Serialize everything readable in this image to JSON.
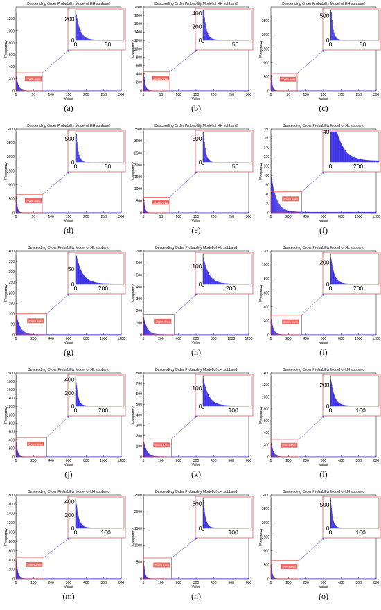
{
  "zoom_label": "Zoom Area",
  "axis_xlabel": "Value",
  "axis_ylabel": "Frequency",
  "colors": {
    "bars": "#3a2fe6",
    "zoom": "#e0403a",
    "zoom_fill": "#f06a64",
    "arrow": "#3030d0",
    "axis": "#000000"
  },
  "chart_data": [
    {
      "id": "a",
      "label": "(a)",
      "type": "bar",
      "title": "Descending Order Probability Model of HH subband",
      "xlabel": "Value",
      "ylabel": "Frequency",
      "xlim": [
        0,
        300
      ],
      "ylim": [
        0,
        1400
      ],
      "xticks": [
        0,
        50,
        100,
        150,
        200,
        250,
        300
      ],
      "yticks": [
        0,
        200,
        400,
        600,
        800,
        1000,
        1200
      ],
      "ytick_labels": [
        "0",
        "200",
        "400",
        "600",
        "800",
        "1000",
        "1200"
      ],
      "y_first": 1300,
      "y_second": 240,
      "decay": 6,
      "n_values": 300,
      "zoom_x": [
        0,
        75
      ],
      "zoom_y": [
        0,
        300
      ],
      "inset_xlim": [
        0,
        75
      ],
      "inset_ylim": [
        0,
        290
      ],
      "inset_xticks": [
        0,
        50
      ],
      "inset_yticks": [
        0,
        200
      ]
    },
    {
      "id": "b",
      "label": "(b)",
      "type": "bar",
      "title": "Descending Order Probability Model of HH subband",
      "xlabel": "Value",
      "ylabel": "Frequency",
      "xlim": [
        0,
        300
      ],
      "ylim": [
        0,
        2000
      ],
      "xticks": [
        0,
        50,
        100,
        150,
        200,
        250,
        300
      ],
      "yticks": [
        0,
        200,
        400,
        600,
        800,
        1000,
        1200,
        1400,
        1600,
        1800,
        2000
      ],
      "ytick_labels": [
        "0",
        "200",
        "400",
        "600",
        "800",
        "1000",
        "1200",
        "1400",
        "1600",
        "1800",
        "2000"
      ],
      "y_first": 1900,
      "y_second": 420,
      "decay": 4,
      "n_values": 300,
      "zoom_x": [
        0,
        75
      ],
      "zoom_y": [
        0,
        450
      ],
      "inset_xlim": [
        0,
        75
      ],
      "inset_ylim": [
        0,
        450
      ],
      "inset_xticks": [
        0,
        50
      ],
      "inset_yticks": [
        0,
        200,
        400
      ]
    },
    {
      "id": "c",
      "label": "(c)",
      "type": "bar",
      "title": "Descending Order Probability Model of HH subband",
      "xlabel": "Value",
      "ylabel": "Frequency",
      "xlim": [
        0,
        300
      ],
      "ylim": [
        0,
        3000
      ],
      "xticks": [
        0,
        50,
        100,
        150,
        200,
        250,
        300
      ],
      "yticks": [
        0,
        500,
        1000,
        1500,
        2000,
        2500
      ],
      "ytick_labels": [
        "0",
        "500",
        "1000",
        "1500",
        "2000",
        "2500"
      ],
      "y_first": 2700,
      "y_second": 560,
      "decay": 3,
      "n_values": 300,
      "zoom_x": [
        0,
        75
      ],
      "zoom_y": [
        0,
        620
      ],
      "inset_xlim": [
        0,
        75
      ],
      "inset_ylim": [
        0,
        620
      ],
      "inset_xticks": [
        0,
        50
      ],
      "inset_yticks": [
        0,
        500
      ]
    },
    {
      "id": "d",
      "label": "(d)",
      "type": "bar",
      "title": "Descending Order Probability Model of HH subband",
      "xlabel": "Value",
      "ylabel": "Frequency",
      "xlim": [
        0,
        300
      ],
      "ylim": [
        0,
        3000
      ],
      "xticks": [
        0,
        50,
        100,
        150,
        200,
        250,
        300
      ],
      "yticks": [
        0,
        500,
        1000,
        1500,
        2000,
        2500,
        3000
      ],
      "ytick_labels": [
        "0",
        "500",
        "1000",
        "1500",
        "2000",
        "2500",
        "3000"
      ],
      "y_first": 2900,
      "y_second": 580,
      "decay": 3,
      "n_values": 300,
      "zoom_x": [
        0,
        75
      ],
      "zoom_y": [
        0,
        650
      ],
      "inset_xlim": [
        0,
        75
      ],
      "inset_ylim": [
        0,
        650
      ],
      "inset_xticks": [
        0,
        50
      ],
      "inset_yticks": [
        0,
        500
      ]
    },
    {
      "id": "e",
      "label": "(e)",
      "type": "bar",
      "title": "Descending Order Probability Model of HH subband",
      "xlabel": "Value",
      "ylabel": "Frequency",
      "xlim": [
        0,
        300
      ],
      "ylim": [
        0,
        3500
      ],
      "xticks": [
        0,
        50,
        100,
        150,
        200,
        250,
        300
      ],
      "yticks": [
        0,
        500,
        1000,
        1500,
        2000,
        2500,
        3000,
        3500
      ],
      "ytick_labels": [
        "0",
        "500",
        "1000",
        "1500",
        "2000",
        "2500",
        "3000",
        "3500"
      ],
      "y_first": 3400,
      "y_second": 580,
      "decay": 3,
      "n_values": 300,
      "zoom_x": [
        0,
        75
      ],
      "zoom_y": [
        0,
        650
      ],
      "inset_xlim": [
        0,
        75
      ],
      "inset_ylim": [
        0,
        650
      ],
      "inset_xticks": [
        0,
        50
      ],
      "inset_yticks": [
        0,
        500
      ]
    },
    {
      "id": "f",
      "label": "(f)",
      "type": "bar",
      "title": "Descending Order Probability Model of HL subband",
      "xlabel": "Value",
      "ylabel": "Frequency",
      "xlim": [
        0,
        1200
      ],
      "ylim": [
        0,
        180
      ],
      "xticks": [
        0,
        200,
        400,
        600,
        800,
        1000,
        1200
      ],
      "yticks": [
        0,
        20,
        40,
        60,
        80,
        100,
        120,
        140,
        160,
        180
      ],
      "ytick_labels": [
        "0",
        "20",
        "40",
        "60",
        "80",
        "100",
        "120",
        "140",
        "160",
        "180"
      ],
      "y_first": 170,
      "y_second": 80,
      "decay": 60,
      "n_values": 1200,
      "zoom_x": [
        0,
        350
      ],
      "zoom_y": [
        0,
        45
      ],
      "inset_xlim": [
        0,
        350
      ],
      "inset_ylim": [
        0,
        40
      ],
      "inset_xticks": [
        0,
        200
      ],
      "inset_yticks": [
        40
      ],
      "inset_ytick_labels": [
        "40"
      ]
    },
    {
      "id": "g",
      "label": "(g)",
      "type": "bar",
      "title": "Descending Order Probability Model of HL subband",
      "xlabel": "Value",
      "ylabel": "Frequency",
      "xlim": [
        0,
        1200
      ],
      "ylim": [
        0,
        400
      ],
      "xticks": [
        0,
        200,
        400,
        600,
        800,
        1000,
        1200
      ],
      "yticks": [
        0,
        50,
        100,
        150,
        200,
        250,
        300,
        350,
        400
      ],
      "ytick_labels": [
        "0",
        "50",
        "100",
        "150",
        "200",
        "250",
        "300",
        "350",
        "400"
      ],
      "y_first": 380,
      "y_second": 100,
      "decay": 45,
      "n_values": 1200,
      "zoom_x": [
        0,
        350
      ],
      "zoom_y": [
        0,
        100
      ],
      "inset_xlim": [
        0,
        350
      ],
      "inset_ylim": [
        0,
        100
      ],
      "inset_xticks": [
        0,
        200
      ],
      "inset_yticks": [
        0,
        50
      ]
    },
    {
      "id": "h",
      "label": "(h)",
      "type": "bar",
      "title": "Descending Order Probability Model of HL subband",
      "xlabel": "Value",
      "ylabel": "Frequency",
      "xlim": [
        0,
        1200
      ],
      "ylim": [
        0,
        700
      ],
      "xticks": [
        0,
        200,
        400,
        600,
        800,
        1000,
        1200
      ],
      "yticks": [
        0,
        100,
        200,
        300,
        400,
        500,
        600,
        700
      ],
      "ytick_labels": [
        "0",
        "100",
        "200",
        "300",
        "400",
        "500",
        "600",
        "700"
      ],
      "y_first": 680,
      "y_second": 150,
      "decay": 40,
      "n_values": 1200,
      "zoom_x": [
        0,
        350
      ],
      "zoom_y": [
        0,
        170
      ],
      "inset_xlim": [
        0,
        350
      ],
      "inset_ylim": [
        0,
        170
      ],
      "inset_xticks": [
        0,
        200
      ],
      "inset_yticks": [
        0,
        100
      ]
    },
    {
      "id": "i",
      "label": "(i)",
      "type": "bar",
      "title": "Descending Order Probability Model of HL subband",
      "xlabel": "Value",
      "ylabel": "Frequency",
      "xlim": [
        0,
        1200
      ],
      "ylim": [
        0,
        1200
      ],
      "xticks": [
        0,
        200,
        400,
        600,
        800,
        1000,
        1200
      ],
      "yticks": [
        0,
        200,
        400,
        600,
        800,
        1000,
        1200
      ],
      "ytick_labels": [
        "0",
        "200",
        "400",
        "600",
        "800",
        "1000",
        "1200"
      ],
      "y_first": 1150,
      "y_second": 250,
      "decay": 25,
      "n_values": 1200,
      "zoom_x": [
        0,
        350
      ],
      "zoom_y": [
        0,
        280
      ],
      "inset_xlim": [
        0,
        350
      ],
      "inset_ylim": [
        0,
        280
      ],
      "inset_xticks": [
        0,
        200
      ],
      "inset_yticks": [
        0,
        200
      ]
    },
    {
      "id": "j",
      "label": "(j)",
      "type": "bar",
      "title": "Descending Order Probability Model of HL subband",
      "xlabel": "Value",
      "ylabel": "Frequency",
      "xlim": [
        0,
        1200
      ],
      "ylim": [
        0,
        2000
      ],
      "xticks": [
        0,
        200,
        400,
        600,
        800,
        1000,
        1200
      ],
      "yticks": [
        0,
        200,
        400,
        600,
        800,
        1000,
        1200,
        1400,
        1600,
        1800,
        2000
      ],
      "ytick_labels": [
        "0",
        "200",
        "400",
        "600",
        "800",
        "1000",
        "1200",
        "1400",
        "1600",
        "1800",
        "2000"
      ],
      "y_first": 1950,
      "y_second": 420,
      "decay": 15,
      "n_values": 1200,
      "zoom_x": [
        0,
        350
      ],
      "zoom_y": [
        0,
        460
      ],
      "inset_xlim": [
        0,
        350
      ],
      "inset_ylim": [
        0,
        460
      ],
      "inset_xticks": [
        0,
        200
      ],
      "inset_yticks": [
        0,
        200,
        400
      ]
    },
    {
      "id": "k",
      "label": "(k)",
      "type": "bar",
      "title": "Descending Order Probability Model of LH subband",
      "xlabel": "Value",
      "ylabel": "Frequency",
      "xlim": [
        0,
        600
      ],
      "ylim": [
        0,
        800
      ],
      "xticks": [
        0,
        100,
        200,
        300,
        400,
        500,
        600
      ],
      "yticks": [
        0,
        100,
        200,
        300,
        400,
        500,
        600,
        700,
        800
      ],
      "ytick_labels": [
        "0",
        "100",
        "200",
        "300",
        "400",
        "500",
        "600",
        "700",
        "800"
      ],
      "y_first": 780,
      "y_second": 150,
      "decay": 18,
      "n_values": 600,
      "zoom_x": [
        0,
        160
      ],
      "zoom_y": [
        0,
        170
      ],
      "inset_xlim": [
        0,
        160
      ],
      "inset_ylim": [
        0,
        170
      ],
      "inset_xticks": [
        0,
        100
      ],
      "inset_yticks": [
        0,
        100
      ]
    },
    {
      "id": "l",
      "label": "(l)",
      "type": "bar",
      "title": "Descending Order Probability Model of LH subband",
      "xlabel": "Value",
      "ylabel": "Frequency",
      "xlim": [
        0,
        600
      ],
      "ylim": [
        0,
        1400
      ],
      "xticks": [
        0,
        100,
        200,
        300,
        400,
        500,
        600
      ],
      "yticks": [
        0,
        200,
        400,
        600,
        800,
        1000,
        1200,
        1400
      ],
      "ytick_labels": [
        "0",
        "200",
        "400",
        "600",
        "800",
        "1000",
        "1200",
        "1400"
      ],
      "y_first": 1350,
      "y_second": 250,
      "decay": 12,
      "n_values": 600,
      "zoom_x": [
        0,
        160
      ],
      "zoom_y": [
        0,
        290
      ],
      "inset_xlim": [
        0,
        160
      ],
      "inset_ylim": [
        0,
        290
      ],
      "inset_xticks": [
        0,
        100
      ],
      "inset_yticks": [
        0,
        200
      ]
    },
    {
      "id": "m",
      "label": "(m)",
      "type": "bar",
      "title": "Descending Order Probability Model of LH subband",
      "xlabel": "Value",
      "ylabel": "Frequency",
      "xlim": [
        0,
        600
      ],
      "ylim": [
        0,
        1800
      ],
      "xticks": [
        0,
        100,
        200,
        300,
        400,
        500,
        600
      ],
      "yticks": [
        0,
        200,
        400,
        600,
        800,
        1000,
        1200,
        1400,
        1600,
        1800
      ],
      "ytick_labels": [
        "0",
        "200",
        "400",
        "600",
        "800",
        "1000",
        "1200",
        "1400",
        "1600",
        "1800"
      ],
      "y_first": 1750,
      "y_second": 420,
      "decay": 9,
      "n_values": 600,
      "zoom_x": [
        0,
        160
      ],
      "zoom_y": [
        0,
        460
      ],
      "inset_xlim": [
        0,
        160
      ],
      "inset_ylim": [
        0,
        460
      ],
      "inset_xticks": [
        0,
        100
      ],
      "inset_yticks": [
        0,
        200,
        400
      ]
    },
    {
      "id": "n",
      "label": "(n)",
      "type": "bar",
      "title": "Descending Order Probability Model of LH subband",
      "xlabel": "Value",
      "ylabel": "Frequency",
      "xlim": [
        0,
        600
      ],
      "ylim": [
        0,
        2500
      ],
      "xticks": [
        0,
        100,
        200,
        300,
        400,
        500,
        600
      ],
      "yticks": [
        0,
        500,
        1000,
        1500,
        2000,
        2500
      ],
      "ytick_labels": [
        "0",
        "500",
        "1000",
        "1500",
        "2000",
        "2500"
      ],
      "y_first": 2450,
      "y_second": 560,
      "decay": 7,
      "n_values": 600,
      "zoom_x": [
        0,
        160
      ],
      "zoom_y": [
        0,
        620
      ],
      "inset_xlim": [
        0,
        160
      ],
      "inset_ylim": [
        0,
        620
      ],
      "inset_xticks": [
        0,
        100
      ],
      "inset_yticks": [
        0,
        500
      ]
    },
    {
      "id": "o",
      "label": "(o)",
      "type": "bar",
      "title": "Descending Order Probability Model of LH subband",
      "xlabel": "Value",
      "ylabel": "Frequency",
      "xlim": [
        0,
        600
      ],
      "ylim": [
        0,
        3000
      ],
      "xticks": [
        0,
        100,
        200,
        300,
        400,
        500,
        600
      ],
      "yticks": [
        0,
        500,
        1000,
        1500,
        2000,
        2500,
        3000
      ],
      "ytick_labels": [
        "0",
        "500",
        "1000",
        "1500",
        "2000",
        "2500",
        "3000"
      ],
      "y_first": 2900,
      "y_second": 580,
      "decay": 6,
      "n_values": 600,
      "zoom_x": [
        0,
        160
      ],
      "zoom_y": [
        0,
        650
      ],
      "inset_xlim": [
        0,
        160
      ],
      "inset_ylim": [
        0,
        650
      ],
      "inset_xticks": [
        0,
        100
      ],
      "inset_yticks": [
        0,
        500
      ]
    }
  ]
}
